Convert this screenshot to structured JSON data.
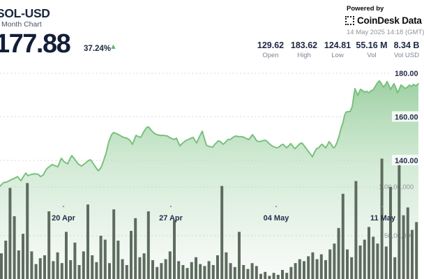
{
  "header": {
    "symbol": "SOL-USD",
    "period_label": "Month Chart",
    "price": "177.88",
    "change_pct": "37.24%",
    "up_arrow": "▲",
    "powered_by": "Powered by",
    "brand": "CoinDesk Data",
    "timestamp": "14 May 2025 14:18 (GMT)",
    "stats": [
      {
        "value": "129.62",
        "label": "Open"
      },
      {
        "value": "183.62",
        "label": "High"
      },
      {
        "value": "124.81",
        "label": "Low"
      },
      {
        "value": "55.16 M",
        "label": "Vol"
      },
      {
        "value": "8.34 B",
        "label": "Vol USD"
      }
    ]
  },
  "chart_data": {
    "type": "area",
    "title": "SOL-USD Month Chart",
    "legend": "none",
    "grid": "dotted-horizontal",
    "price_axis_side": "right",
    "price_axis_range": [
      126,
      184
    ],
    "price_gridlines": [
      {
        "label": "180.00",
        "value": 180
      },
      {
        "label": "160.00",
        "value": 160
      },
      {
        "label": "140.00",
        "value": 140
      }
    ],
    "volume_gridlines": [
      {
        "label": "1,00,00,000",
        "value_m": 10,
        "label_x": 543
      },
      {
        "label": "50,00,000",
        "value_m": 5,
        "label_x": 551
      }
    ],
    "x_ticks": [
      {
        "label": "20 Apr",
        "x": 91
      },
      {
        "label": "27 Apr",
        "x": 245
      },
      {
        "label": "04 May",
        "x": 396
      },
      {
        "label": "11 May",
        "x": 549
      }
    ],
    "price_series": [
      [
        0,
        128.2
      ],
      [
        5,
        129.8
      ],
      [
        10,
        130.1
      ],
      [
        15,
        131.0
      ],
      [
        20,
        131.7
      ],
      [
        25,
        132.6
      ],
      [
        28,
        131.4
      ],
      [
        30,
        130.7
      ],
      [
        35,
        133.3
      ],
      [
        37,
        134.2
      ],
      [
        40,
        133.0
      ],
      [
        45,
        133.6
      ],
      [
        50,
        133.9
      ],
      [
        55,
        133.6
      ],
      [
        58,
        132.6
      ],
      [
        62,
        133.3
      ],
      [
        67,
        136.2
      ],
      [
        72,
        137.4
      ],
      [
        75,
        138.1
      ],
      [
        80,
        137.4
      ],
      [
        83,
        137.1
      ],
      [
        88,
        141.0
      ],
      [
        92,
        139.4
      ],
      [
        97,
        138.4
      ],
      [
        100,
        140.6
      ],
      [
        103,
        142.2
      ],
      [
        107,
        140.6
      ],
      [
        112,
        138.4
      ],
      [
        117,
        137.4
      ],
      [
        122,
        138.7
      ],
      [
        127,
        140.0
      ],
      [
        130,
        140.3
      ],
      [
        134,
        138.4
      ],
      [
        138,
        136.5
      ],
      [
        141,
        135.2
      ],
      [
        145,
        136.8
      ],
      [
        148,
        139.4
      ],
      [
        152,
        143.2
      ],
      [
        156,
        148.6
      ],
      [
        160,
        151.8
      ],
      [
        163,
        152.8
      ],
      [
        168,
        152.2
      ],
      [
        172,
        151.5
      ],
      [
        177,
        150.6
      ],
      [
        182,
        150.2
      ],
      [
        186,
        149.3
      ],
      [
        190,
        147.4
      ],
      [
        195,
        151.5
      ],
      [
        199,
        150.9
      ],
      [
        202,
        150.6
      ],
      [
        206,
        153.1
      ],
      [
        210,
        155.0
      ],
      [
        213,
        155.4
      ],
      [
        217,
        153.8
      ],
      [
        221,
        152.5
      ],
      [
        225,
        151.8
      ],
      [
        230,
        151.5
      ],
      [
        235,
        151.5
      ],
      [
        240,
        151.2
      ],
      [
        245,
        150.2
      ],
      [
        250,
        149.6
      ],
      [
        253,
        150.2
      ],
      [
        256,
        148.0
      ],
      [
        258,
        146.7
      ],
      [
        262,
        148.0
      ],
      [
        266,
        149.0
      ],
      [
        270,
        149.6
      ],
      [
        274,
        150.2
      ],
      [
        277,
        150.6
      ],
      [
        280,
        149.0
      ],
      [
        282,
        148.0
      ],
      [
        286,
        150.9
      ],
      [
        290,
        153.4
      ],
      [
        293,
        150.2
      ],
      [
        296,
        147.0
      ],
      [
        300,
        146.4
      ],
      [
        305,
        146.1
      ],
      [
        309,
        147.7
      ],
      [
        313,
        149.0
      ],
      [
        316,
        148.6
      ],
      [
        320,
        147.4
      ],
      [
        323,
        148.3
      ],
      [
        327,
        149.6
      ],
      [
        330,
        149.6
      ],
      [
        334,
        150.6
      ],
      [
        338,
        151.2
      ],
      [
        342,
        150.9
      ],
      [
        346,
        150.9
      ],
      [
        350,
        150.6
      ],
      [
        354,
        149.9
      ],
      [
        357,
        149.6
      ],
      [
        360,
        150.9
      ],
      [
        362,
        151.8
      ],
      [
        365,
        150.6
      ],
      [
        368,
        149.0
      ],
      [
        372,
        148.6
      ],
      [
        376,
        149.0
      ],
      [
        379,
        149.3
      ],
      [
        382,
        149.0
      ],
      [
        386,
        147.7
      ],
      [
        390,
        146.7
      ],
      [
        394,
        146.1
      ],
      [
        397,
        145.8
      ],
      [
        400,
        146.1
      ],
      [
        403,
        147.0
      ],
      [
        406,
        147.4
      ],
      [
        409,
        146.4
      ],
      [
        411,
        145.8
      ],
      [
        414,
        146.7
      ],
      [
        417,
        147.7
      ],
      [
        420,
        146.4
      ],
      [
        423,
        145.4
      ],
      [
        427,
        146.7
      ],
      [
        430,
        147.7
      ],
      [
        433,
        148.0
      ],
      [
        437,
        146.4
      ],
      [
        440,
        145.1
      ],
      [
        443,
        143.8
      ],
      [
        446,
        142.6
      ],
      [
        448,
        141.6
      ],
      [
        451,
        143.8
      ],
      [
        454,
        145.4
      ],
      [
        457,
        145.8
      ],
      [
        460,
        147.0
      ],
      [
        462,
        147.4
      ],
      [
        465,
        146.4
      ],
      [
        467,
        145.8
      ],
      [
        470,
        147.4
      ],
      [
        472,
        148.6
      ],
      [
        475,
        147.4
      ],
      [
        478,
        145.8
      ],
      [
        480,
        146.1
      ],
      [
        483,
        148.0
      ],
      [
        486,
        150.9
      ],
      [
        489,
        154.7
      ],
      [
        492,
        157.6
      ],
      [
        494,
        160.5
      ],
      [
        496,
        162.1
      ],
      [
        499,
        162.4
      ],
      [
        502,
        162.4
      ],
      [
        505,
        164.6
      ],
      [
        507,
        168.8
      ],
      [
        509,
        173.0
      ],
      [
        511,
        171.4
      ],
      [
        513,
        169.8
      ],
      [
        515,
        171.4
      ],
      [
        517,
        172.6
      ],
      [
        520,
        172.0
      ],
      [
        523,
        171.4
      ],
      [
        526,
        171.7
      ],
      [
        529,
        171.0
      ],
      [
        532,
        172.0
      ],
      [
        535,
        172.3
      ],
      [
        538,
        173.9
      ],
      [
        541,
        175.5
      ],
      [
        544,
        176.5
      ],
      [
        547,
        175.2
      ],
      [
        550,
        173.6
      ],
      [
        553,
        174.9
      ],
      [
        555,
        176.2
      ],
      [
        558,
        174.2
      ],
      [
        560,
        172.6
      ],
      [
        563,
        174.2
      ],
      [
        565,
        175.2
      ],
      [
        568,
        173.0
      ],
      [
        570,
        171.0
      ],
      [
        573,
        173.0
      ],
      [
        575,
        174.6
      ],
      [
        578,
        173.9
      ],
      [
        581,
        173.0
      ],
      [
        584,
        173.6
      ],
      [
        587,
        174.6
      ],
      [
        590,
        173.9
      ],
      [
        593,
        174.9
      ],
      [
        596,
        174.2
      ],
      [
        600,
        175.2
      ]
    ],
    "volume_series_m": [
      3.2,
      4.5,
      9.9,
      7,
      3.5,
      5.2,
      10.4,
      3.4,
      2.1,
      2.7,
      3,
      7.5,
      2.4,
      3.3,
      2.2,
      5.4,
      2.5,
      4.3,
      2,
      3.4,
      8.2,
      3,
      2.3,
      5,
      4.6,
      2.2,
      7.7,
      4.5,
      2.6,
      2,
      5.5,
      6.8,
      2.8,
      3.2,
      7.5,
      2.5,
      1.8,
      2.2,
      2.6,
      3.4,
      6.6,
      2.4,
      2,
      1.7,
      2.3,
      2.8,
      2.1,
      1.9,
      2.4,
      2,
      3,
      10.1,
      3.3,
      2.2,
      1.8,
      5.4,
      2,
      1.6,
      2.2,
      1.9,
      1.1,
      1.3,
      0.9,
      1.2,
      1.0,
      1.5,
      1.2,
      1.8,
      2.2,
      2.6,
      2.4,
      2.9,
      3.3,
      2.6,
      3.1,
      2.5,
      3.6,
      4.2,
      5.8,
      9.3,
      3.6,
      2.8,
      10.6,
      4.0,
      4.6,
      5.9,
      4.9,
      4.2,
      12.9,
      3.9,
      10.0,
      2.8,
      12.6,
      7.1,
      7.9,
      5.6,
      6.4
    ],
    "colors": {
      "line_green": "#79c17d",
      "fill_green_top": "#7bbf82",
      "volume_bar": "#5e6c5f",
      "text_navy": "#1b2740",
      "text_gray": "#7b8494",
      "up_green": "#5cba72",
      "grid": "#c5cad0"
    }
  }
}
